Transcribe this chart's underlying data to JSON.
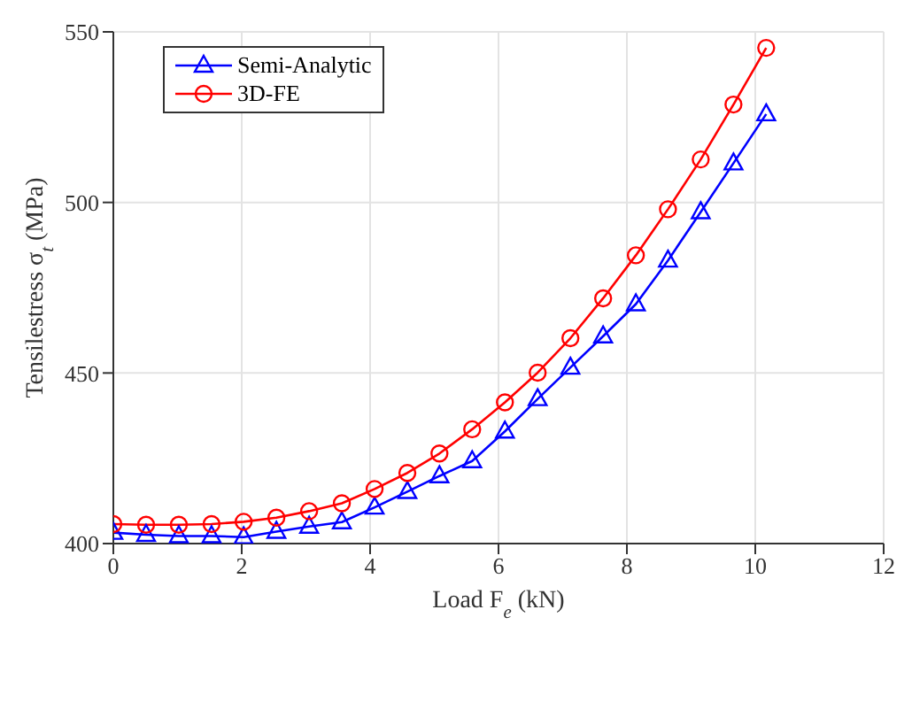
{
  "chart_data": {
    "type": "line",
    "xlabel": "Load F$_{e}$ (kN)",
    "ylabel": "Tensilestress σ$_{t}$ (MPa)",
    "x": [
      0,
      0.51,
      1.02,
      1.53,
      2.03,
      2.54,
      3.05,
      3.56,
      4.07,
      4.58,
      5.08,
      5.59,
      6.1,
      6.61,
      7.12,
      7.63,
      8.14,
      8.64,
      9.15,
      9.66,
      10.17
    ],
    "series": [
      {
        "name": "Semi-Analytic",
        "color": "#0000ff",
        "marker": "triangle",
        "values": [
          403.2,
          402.6,
          402.2,
          402.2,
          401.9,
          403.5,
          405,
          406.3,
          410.6,
          415.2,
          419.8,
          424.2,
          432.9,
          442.4,
          451.6,
          460.8,
          470.2,
          483,
          497.2,
          511.5,
          525.9
        ]
      },
      {
        "name": "3D-FE",
        "color": "#ff0000",
        "marker": "circle",
        "values": [
          405.7,
          405.5,
          405.5,
          405.7,
          406.4,
          407.6,
          409.5,
          411.8,
          416,
          420.7,
          426.4,
          433.5,
          441.4,
          450.1,
          460.2,
          471.9,
          484.5,
          498,
          512.6,
          528.7,
          545.3
        ]
      }
    ],
    "xlim": [
      0,
      12
    ],
    "xticks": [
      0,
      2,
      4,
      6,
      8,
      10,
      12
    ],
    "ylim": [
      400,
      550
    ],
    "yticks": [
      400,
      450,
      500,
      550
    ],
    "grid": true,
    "legend": "top left"
  }
}
